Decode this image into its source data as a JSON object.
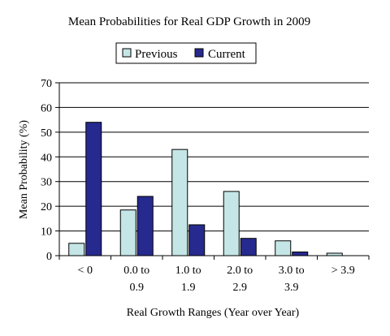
{
  "chart_data": {
    "type": "bar",
    "title": "Mean Probabilities for Real GDP Growth in 2009",
    "xlabel": "Real Growth Ranges (Year over Year)",
    "ylabel": "Mean Probability (%)",
    "ylim": [
      0,
      70
    ],
    "yticks": [
      0,
      10,
      20,
      30,
      40,
      50,
      60,
      70
    ],
    "grid": true,
    "legend_position": "top",
    "categories": [
      [
        "< 0"
      ],
      [
        "0.0 to",
        "0.9"
      ],
      [
        "1.0 to",
        "1.9"
      ],
      [
        "2.0 to",
        "2.9"
      ],
      [
        "3.0 to",
        "3.9"
      ],
      [
        "> 3.9"
      ]
    ],
    "series": [
      {
        "name": "Previous",
        "color": "#c5e6e6",
        "values": [
          5,
          18.5,
          43,
          26,
          6,
          1
        ]
      },
      {
        "name": "Current",
        "color": "#262a8e",
        "values": [
          54,
          24,
          12.5,
          7,
          1.5,
          0
        ]
      }
    ]
  }
}
